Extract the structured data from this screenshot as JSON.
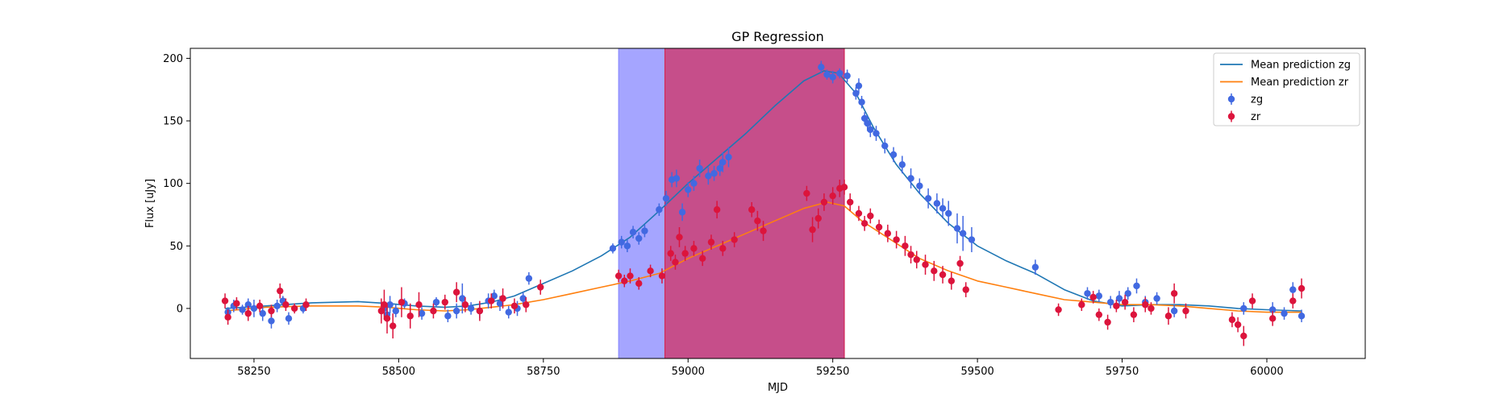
{
  "chart_data": {
    "type": "scatter",
    "title": "GP Regression",
    "xlabel": "MJD",
    "ylabel": "Flux [uJy]",
    "xlim": [
      58140,
      60170
    ],
    "ylim": [
      -40,
      208
    ],
    "xticks": [
      58250,
      58500,
      58750,
      59000,
      59250,
      59500,
      59750,
      60000
    ],
    "yticks": [
      0,
      50,
      100,
      150,
      200
    ],
    "grid": false,
    "legend_position": "top-right",
    "colors": {
      "mean_zg": "#1f77b4",
      "mean_zr": "#ff7f0e",
      "zg": "#4169e1",
      "zr": "#dc143c",
      "span_zg": "#7b7bff",
      "span_zr": "#dc143c"
    },
    "spans": [
      {
        "band": "zg",
        "x0": 58880,
        "x1": 59270
      },
      {
        "band": "zr",
        "x0": 58960,
        "x1": 59270
      }
    ],
    "lines": [
      {
        "name": "Mean prediction zg",
        "color": "#1f77b4",
        "points": [
          [
            58200,
            0
          ],
          [
            58270,
            2
          ],
          [
            58350,
            4.5
          ],
          [
            58430,
            5.5
          ],
          [
            58480,
            4
          ],
          [
            58530,
            2
          ],
          [
            58580,
            1
          ],
          [
            58620,
            2
          ],
          [
            58660,
            5
          ],
          [
            58700,
            10
          ],
          [
            58750,
            20
          ],
          [
            58800,
            30
          ],
          [
            58850,
            42
          ],
          [
            58900,
            57
          ],
          [
            58950,
            78
          ],
          [
            59000,
            100
          ],
          [
            59050,
            120
          ],
          [
            59100,
            140
          ],
          [
            59150,
            162
          ],
          [
            59200,
            182
          ],
          [
            59235,
            190
          ],
          [
            59260,
            188
          ],
          [
            59290,
            172
          ],
          [
            59320,
            145
          ],
          [
            59360,
            115
          ],
          [
            59400,
            92
          ],
          [
            59450,
            68
          ],
          [
            59500,
            50
          ],
          [
            59550,
            38
          ],
          [
            59600,
            28
          ],
          [
            59650,
            15
          ],
          [
            59700,
            6
          ],
          [
            59750,
            2
          ],
          [
            59800,
            3
          ],
          [
            59850,
            3
          ],
          [
            59900,
            2
          ],
          [
            59950,
            0
          ],
          [
            60000,
            -1
          ],
          [
            60060,
            -2
          ]
        ]
      },
      {
        "name": "Mean prediction zr",
        "color": "#ff7f0e",
        "points": [
          [
            58200,
            -2
          ],
          [
            58270,
            1
          ],
          [
            58350,
            2
          ],
          [
            58430,
            2
          ],
          [
            58480,
            1
          ],
          [
            58530,
            -1
          ],
          [
            58580,
            -2
          ],
          [
            58620,
            -1
          ],
          [
            58660,
            1
          ],
          [
            58700,
            3
          ],
          [
            58750,
            7
          ],
          [
            58800,
            12
          ],
          [
            58850,
            17
          ],
          [
            58900,
            22
          ],
          [
            58950,
            28
          ],
          [
            59000,
            40
          ],
          [
            59050,
            50
          ],
          [
            59100,
            60
          ],
          [
            59150,
            70
          ],
          [
            59200,
            80
          ],
          [
            59240,
            85
          ],
          [
            59270,
            82
          ],
          [
            59300,
            70
          ],
          [
            59350,
            55
          ],
          [
            59400,
            40
          ],
          [
            59450,
            30
          ],
          [
            59500,
            22
          ],
          [
            59550,
            17
          ],
          [
            59600,
            12
          ],
          [
            59650,
            7
          ],
          [
            59700,
            5
          ],
          [
            59750,
            3
          ],
          [
            59800,
            3
          ],
          [
            59850,
            2
          ],
          [
            59900,
            0
          ],
          [
            59950,
            -2
          ],
          [
            60000,
            -3
          ],
          [
            60060,
            -3
          ]
        ]
      }
    ],
    "series": [
      {
        "name": "zg",
        "color": "#4169e1",
        "points": [
          [
            58205,
            -3,
            4
          ],
          [
            58215,
            2,
            5
          ],
          [
            58230,
            -1,
            4
          ],
          [
            58240,
            3,
            5
          ],
          [
            58250,
            0,
            7
          ],
          [
            58265,
            -4,
            6
          ],
          [
            58280,
            -10,
            6
          ],
          [
            58290,
            2,
            5
          ],
          [
            58300,
            6,
            4
          ],
          [
            58310,
            -8,
            5
          ],
          [
            58335,
            0,
            4
          ],
          [
            58475,
            0,
            5
          ],
          [
            58480,
            -5,
            6
          ],
          [
            58485,
            3,
            7
          ],
          [
            58495,
            -2,
            5
          ],
          [
            58510,
            4,
            4
          ],
          [
            58540,
            -4,
            5
          ],
          [
            58565,
            5,
            4
          ],
          [
            58585,
            -6,
            5
          ],
          [
            58600,
            -2,
            6
          ],
          [
            58610,
            8,
            12
          ],
          [
            58625,
            0,
            5
          ],
          [
            58640,
            -2,
            6
          ],
          [
            58655,
            6,
            6
          ],
          [
            58665,
            10,
            5
          ],
          [
            58675,
            4,
            6
          ],
          [
            58690,
            -3,
            5
          ],
          [
            58705,
            0,
            6
          ],
          [
            58715,
            8,
            5
          ],
          [
            58725,
            24,
            5
          ],
          [
            58870,
            48,
            4
          ],
          [
            58885,
            53,
            5
          ],
          [
            58895,
            50,
            5
          ],
          [
            58905,
            61,
            5
          ],
          [
            58915,
            56,
            5
          ],
          [
            58925,
            62,
            5
          ],
          [
            58950,
            79,
            5
          ],
          [
            58962,
            88,
            6
          ],
          [
            58972,
            103,
            6
          ],
          [
            58980,
            104,
            7
          ],
          [
            58990,
            77,
            7
          ],
          [
            59000,
            95,
            6
          ],
          [
            59010,
            100,
            6
          ],
          [
            59020,
            112,
            7
          ],
          [
            59035,
            106,
            7
          ],
          [
            59045,
            108,
            6
          ],
          [
            59055,
            112,
            6
          ],
          [
            59060,
            117,
            8
          ],
          [
            59070,
            121,
            8
          ],
          [
            59230,
            193,
            5
          ],
          [
            59240,
            187,
            4
          ],
          [
            59250,
            185,
            5
          ],
          [
            59262,
            188,
            4
          ],
          [
            59275,
            186,
            5
          ],
          [
            59290,
            172,
            5
          ],
          [
            59295,
            178,
            6
          ],
          [
            59300,
            165,
            5
          ],
          [
            59305,
            152,
            5
          ],
          [
            59310,
            148,
            6
          ],
          [
            59315,
            143,
            6
          ],
          [
            59325,
            140,
            6
          ],
          [
            59340,
            130,
            6
          ],
          [
            59355,
            123,
            6
          ],
          [
            59370,
            115,
            7
          ],
          [
            59385,
            104,
            8
          ],
          [
            59400,
            98,
            6
          ],
          [
            59415,
            88,
            8
          ],
          [
            59430,
            84,
            8
          ],
          [
            59440,
            80,
            8
          ],
          [
            59450,
            76,
            10
          ],
          [
            59465,
            64,
            12
          ],
          [
            59475,
            60,
            14
          ],
          [
            59490,
            55,
            10
          ],
          [
            59600,
            33,
            6
          ],
          [
            59690,
            12,
            5
          ],
          [
            59710,
            10,
            5
          ],
          [
            59730,
            5,
            5
          ],
          [
            59745,
            8,
            6
          ],
          [
            59760,
            12,
            5
          ],
          [
            59775,
            18,
            6
          ],
          [
            59790,
            5,
            5
          ],
          [
            59810,
            8,
            5
          ],
          [
            59840,
            -2,
            5
          ],
          [
            59960,
            0,
            5
          ],
          [
            60010,
            -1,
            6
          ],
          [
            60030,
            -4,
            5
          ],
          [
            60045,
            15,
            6
          ],
          [
            60060,
            -6,
            5
          ]
        ]
      },
      {
        "name": "zr",
        "color": "#dc143c",
        "points": [
          [
            58200,
            6,
            6
          ],
          [
            58205,
            -7,
            6
          ],
          [
            58220,
            4,
            5
          ],
          [
            58240,
            -4,
            6
          ],
          [
            58260,
            2,
            5
          ],
          [
            58280,
            -2,
            5
          ],
          [
            58295,
            14,
            6
          ],
          [
            58305,
            3,
            5
          ],
          [
            58320,
            0,
            4
          ],
          [
            58340,
            3,
            5
          ],
          [
            58470,
            -2,
            10
          ],
          [
            58475,
            3,
            12
          ],
          [
            58480,
            -8,
            12
          ],
          [
            58490,
            -14,
            10
          ],
          [
            58505,
            5,
            12
          ],
          [
            58520,
            -6,
            10
          ],
          [
            58535,
            3,
            10
          ],
          [
            58560,
            -2,
            6
          ],
          [
            58580,
            5,
            6
          ],
          [
            58600,
            13,
            8
          ],
          [
            58615,
            3,
            6
          ],
          [
            58640,
            -2,
            8
          ],
          [
            58660,
            6,
            6
          ],
          [
            58680,
            8,
            8
          ],
          [
            58700,
            2,
            6
          ],
          [
            58720,
            3,
            6
          ],
          [
            58745,
            17,
            6
          ],
          [
            58880,
            26,
            5
          ],
          [
            58890,
            22,
            5
          ],
          [
            58900,
            26,
            6
          ],
          [
            58915,
            20,
            5
          ],
          [
            58935,
            30,
            5
          ],
          [
            58955,
            26,
            6
          ],
          [
            58970,
            44,
            6
          ],
          [
            58978,
            37,
            6
          ],
          [
            58985,
            57,
            8
          ],
          [
            58995,
            44,
            6
          ],
          [
            59010,
            48,
            6
          ],
          [
            59025,
            40,
            6
          ],
          [
            59040,
            53,
            6
          ],
          [
            59050,
            79,
            7
          ],
          [
            59060,
            48,
            6
          ],
          [
            59080,
            55,
            6
          ],
          [
            59110,
            79,
            6
          ],
          [
            59120,
            70,
            8
          ],
          [
            59130,
            62,
            8
          ],
          [
            59205,
            92,
            6
          ],
          [
            59215,
            63,
            10
          ],
          [
            59225,
            72,
            8
          ],
          [
            59235,
            85,
            7
          ],
          [
            59250,
            90,
            7
          ],
          [
            59262,
            96,
            7
          ],
          [
            59270,
            97,
            6
          ],
          [
            59280,
            85,
            7
          ],
          [
            59295,
            76,
            6
          ],
          [
            59305,
            68,
            6
          ],
          [
            59315,
            74,
            6
          ],
          [
            59330,
            65,
            6
          ],
          [
            59345,
            60,
            7
          ],
          [
            59360,
            55,
            7
          ],
          [
            59375,
            50,
            8
          ],
          [
            59385,
            43,
            7
          ],
          [
            59395,
            39,
            7
          ],
          [
            59410,
            35,
            8
          ],
          [
            59425,
            30,
            8
          ],
          [
            59440,
            27,
            7
          ],
          [
            59455,
            22,
            7
          ],
          [
            59470,
            36,
            6
          ],
          [
            59480,
            15,
            6
          ],
          [
            59640,
            -1,
            5
          ],
          [
            59680,
            3,
            5
          ],
          [
            59700,
            9,
            5
          ],
          [
            59710,
            -5,
            5
          ],
          [
            59725,
            -11,
            6
          ],
          [
            59740,
            2,
            5
          ],
          [
            59755,
            5,
            6
          ],
          [
            59770,
            -5,
            6
          ],
          [
            59790,
            3,
            6
          ],
          [
            59800,
            0,
            5
          ],
          [
            59830,
            -6,
            7
          ],
          [
            59840,
            12,
            8
          ],
          [
            59860,
            -2,
            6
          ],
          [
            59940,
            -9,
            6
          ],
          [
            59950,
            -13,
            6
          ],
          [
            59960,
            -22,
            8
          ],
          [
            59975,
            6,
            6
          ],
          [
            60010,
            -8,
            6
          ],
          [
            60045,
            6,
            6
          ],
          [
            60060,
            16,
            8
          ]
        ]
      }
    ]
  }
}
